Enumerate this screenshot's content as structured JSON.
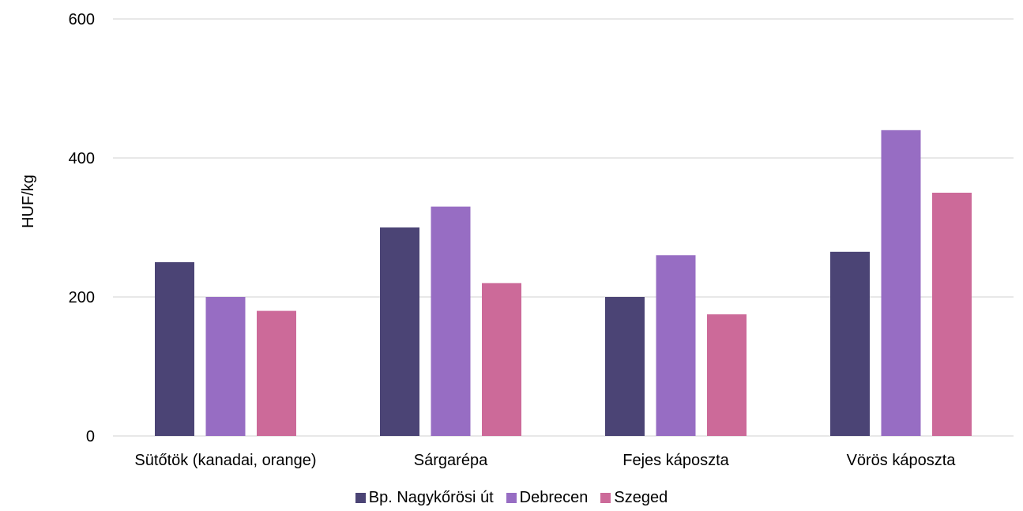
{
  "chart_data": {
    "type": "bar",
    "title": "",
    "xlabel": "",
    "ylabel": "HUF/kg",
    "ylim": [
      0,
      600
    ],
    "yticks": [
      "0",
      "200",
      "400",
      "600"
    ],
    "grid": true,
    "legend_position": "bottom",
    "categories": [
      "Sütőtök (kanadai, orange)",
      "Sárgarépa",
      "Fejes káposzta",
      "Vörös káposzta"
    ],
    "series": [
      {
        "name": "Bp. Nagykőrösi út",
        "color": "#4b4475",
        "values": [
          250,
          300,
          200,
          265
        ]
      },
      {
        "name": "Debrecen",
        "color": "#976dc3",
        "values": [
          200,
          330,
          260,
          440
        ]
      },
      {
        "name": "Szeged",
        "color": "#cc6a99",
        "values": [
          180,
          220,
          175,
          350
        ]
      }
    ]
  }
}
